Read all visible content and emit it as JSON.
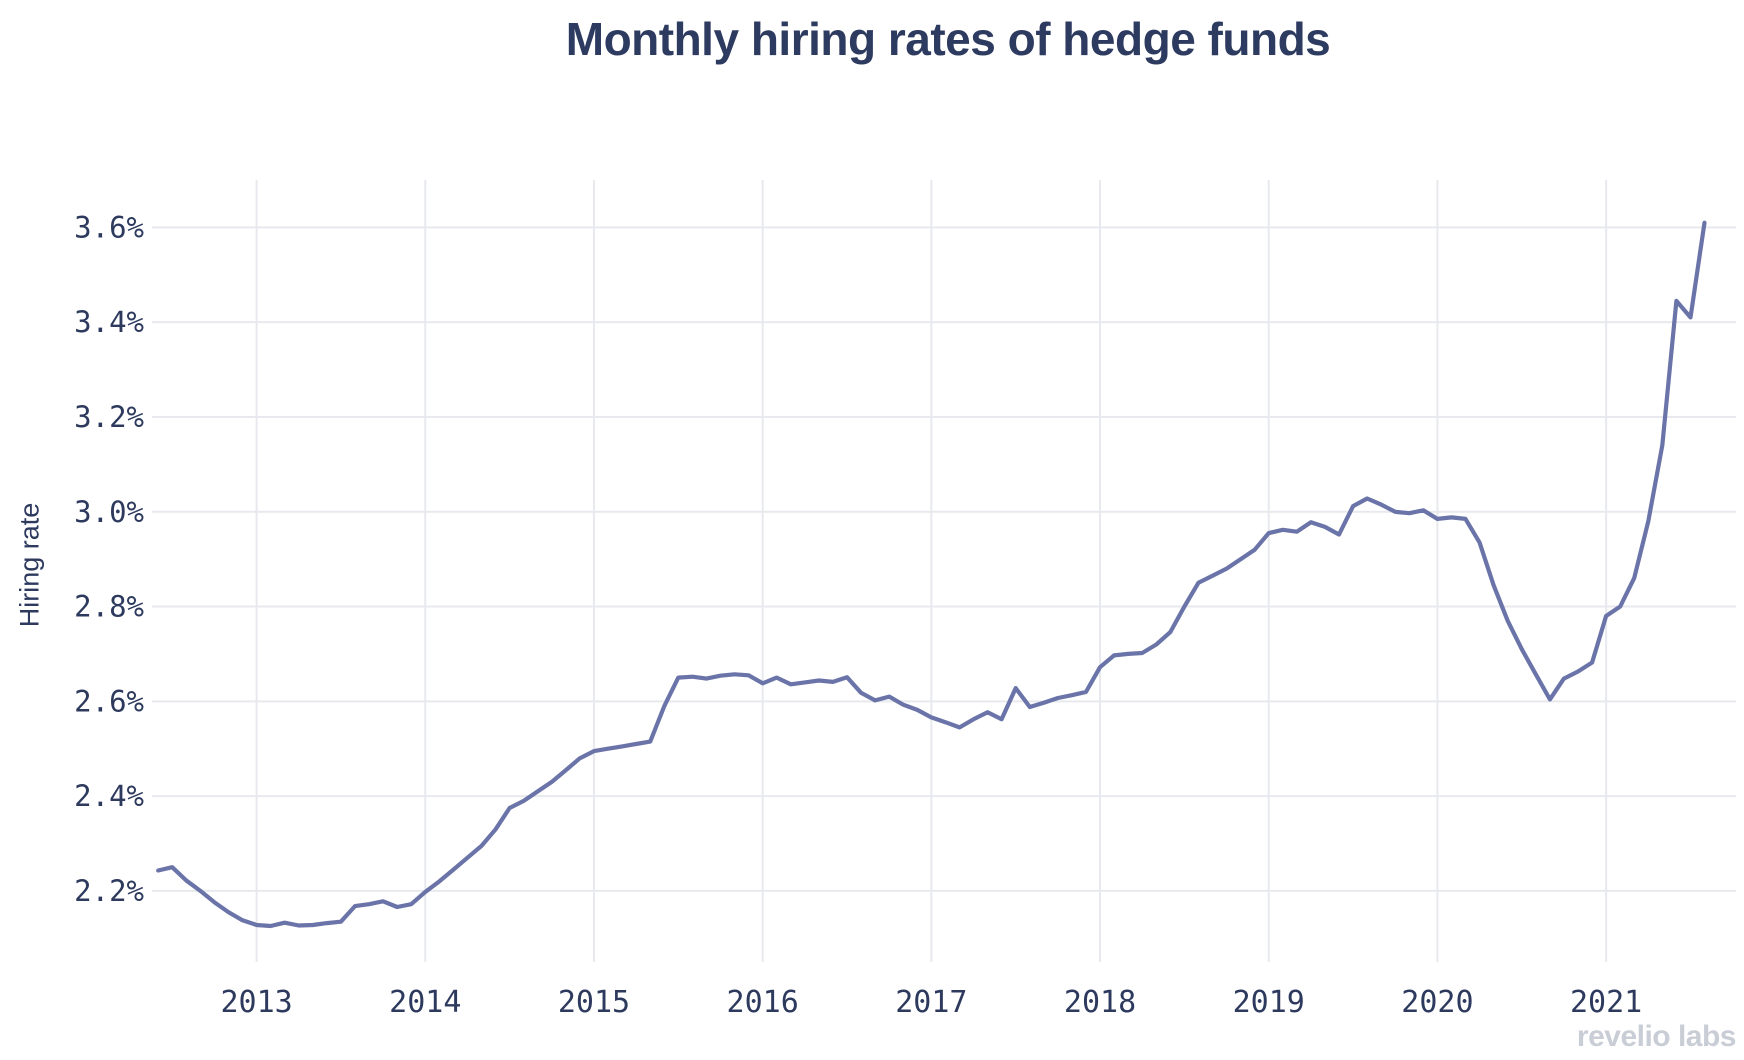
{
  "title": "Monthly hiring rates of hedge funds",
  "y_axis": {
    "label": "Hiring rate",
    "tick_labels": [
      "2.2%",
      "2.4%",
      "2.6%",
      "2.8%",
      "3.0%",
      "3.2%",
      "3.4%",
      "3.6%"
    ]
  },
  "x_axis": {
    "tick_labels": [
      "2013",
      "2014",
      "2015",
      "2016",
      "2017",
      "2018",
      "2019",
      "2020",
      "2021"
    ]
  },
  "watermark": {
    "text": "revelio labs"
  },
  "colors": {
    "line": "#6a74a8",
    "grid": "#e8e9ee",
    "text": "#2d3a5e",
    "title": "#2e3b60",
    "watermark": "#c9cdd6",
    "background": "#ffffff"
  },
  "chart_data": {
    "type": "line",
    "title": "Monthly hiring rates of hedge funds",
    "xlabel": "",
    "ylabel": "Hiring rate",
    "unit": "%",
    "grid": true,
    "legend": "none",
    "x_tick_labels": [
      "2013",
      "2014",
      "2015",
      "2016",
      "2017",
      "2018",
      "2019",
      "2020",
      "2021"
    ],
    "y_tick_labels": [
      "2.2%",
      "2.4%",
      "2.6%",
      "2.8%",
      "3.0%",
      "3.2%",
      "3.4%",
      "3.6%"
    ],
    "xlim_yearfrac": [
      2012.38,
      2021.77
    ],
    "ylim": [
      2.05,
      3.7
    ],
    "series": [
      {
        "name": "Hedge fund monthly hiring rate",
        "frequency": "monthly",
        "start_year": 2012,
        "start_month": 6,
        "values": [
          2.243,
          2.25,
          2.222,
          2.2,
          2.176,
          2.155,
          2.138,
          2.128,
          2.126,
          2.133,
          2.127,
          2.128,
          2.132,
          2.135,
          2.168,
          2.172,
          2.178,
          2.166,
          2.172,
          2.198,
          2.22,
          2.245,
          2.27,
          2.295,
          2.33,
          2.375,
          2.39,
          2.41,
          2.43,
          2.455,
          2.48,
          2.495,
          2.5,
          2.505,
          2.51,
          2.515,
          2.59,
          2.65,
          2.652,
          2.648,
          2.654,
          2.657,
          2.655,
          2.638,
          2.65,
          2.636,
          2.64,
          2.644,
          2.641,
          2.651,
          2.618,
          2.602,
          2.61,
          2.593,
          2.582,
          2.566,
          2.556,
          2.545,
          2.562,
          2.577,
          2.562,
          2.628,
          2.588,
          2.597,
          2.607,
          2.613,
          2.62,
          2.672,
          2.697,
          2.7,
          2.702,
          2.72,
          2.746,
          2.8,
          2.85,
          2.865,
          2.88,
          2.9,
          2.92,
          2.955,
          2.962,
          2.958,
          2.978,
          2.968,
          2.952,
          3.012,
          3.028,
          3.015,
          3.0,
          2.997,
          3.003,
          2.985,
          2.988,
          2.985,
          2.935,
          2.845,
          2.77,
          2.71,
          2.657,
          2.604,
          2.648,
          2.663,
          2.682,
          2.78,
          2.8,
          2.86,
          2.98,
          3.14,
          3.445,
          3.41,
          3.61
        ]
      }
    ]
  }
}
